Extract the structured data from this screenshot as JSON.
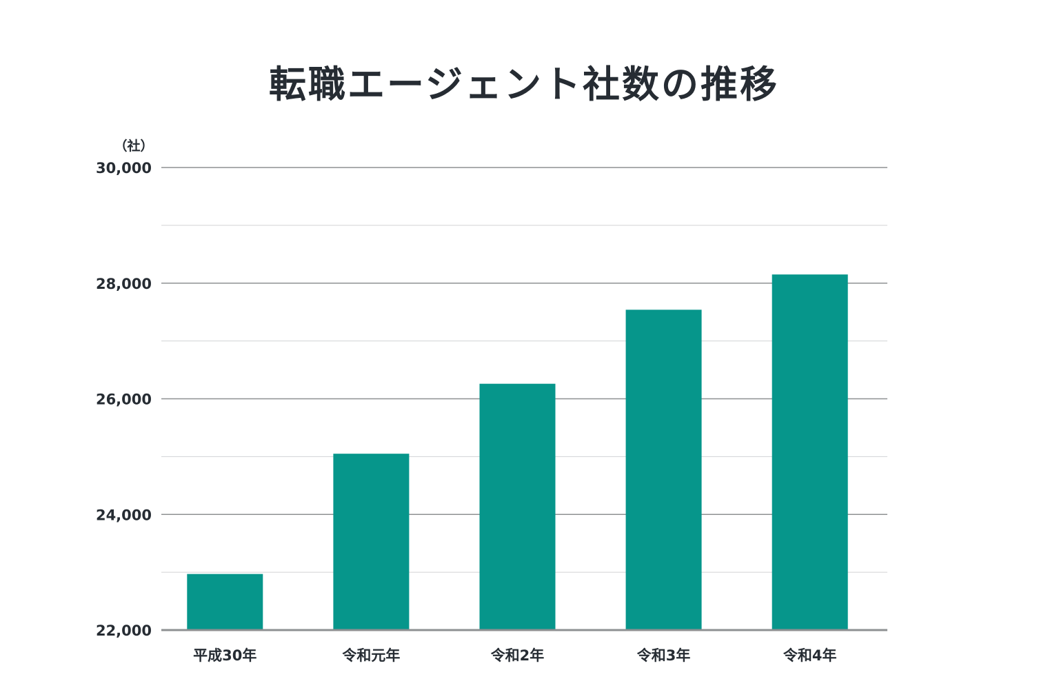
{
  "chart_data": {
    "type": "bar",
    "title": "転職エージェント社数の推移",
    "ylabel": "（社）",
    "xlabel": "",
    "categories": [
      "平成30年",
      "令和元年",
      "令和2年",
      "令和3年",
      "令和4年"
    ],
    "values": [
      22970,
      25050,
      26260,
      27540,
      28150
    ],
    "ylim": [
      22000,
      30000
    ],
    "yticks": [
      22000,
      24000,
      26000,
      28000,
      30000
    ],
    "ytick_labels": [
      "22,000",
      "24,000",
      "26,000",
      "28,000",
      "30,000"
    ],
    "minor_gridlines": [
      23000,
      25000,
      27000,
      29000
    ],
    "grid": true,
    "legend": "none",
    "colors": {
      "bar": "#06968b",
      "major_grid": "#8e9092",
      "minor_grid": "#d0d2d4",
      "baseline": "#8e9092",
      "text": "#262c33"
    }
  }
}
